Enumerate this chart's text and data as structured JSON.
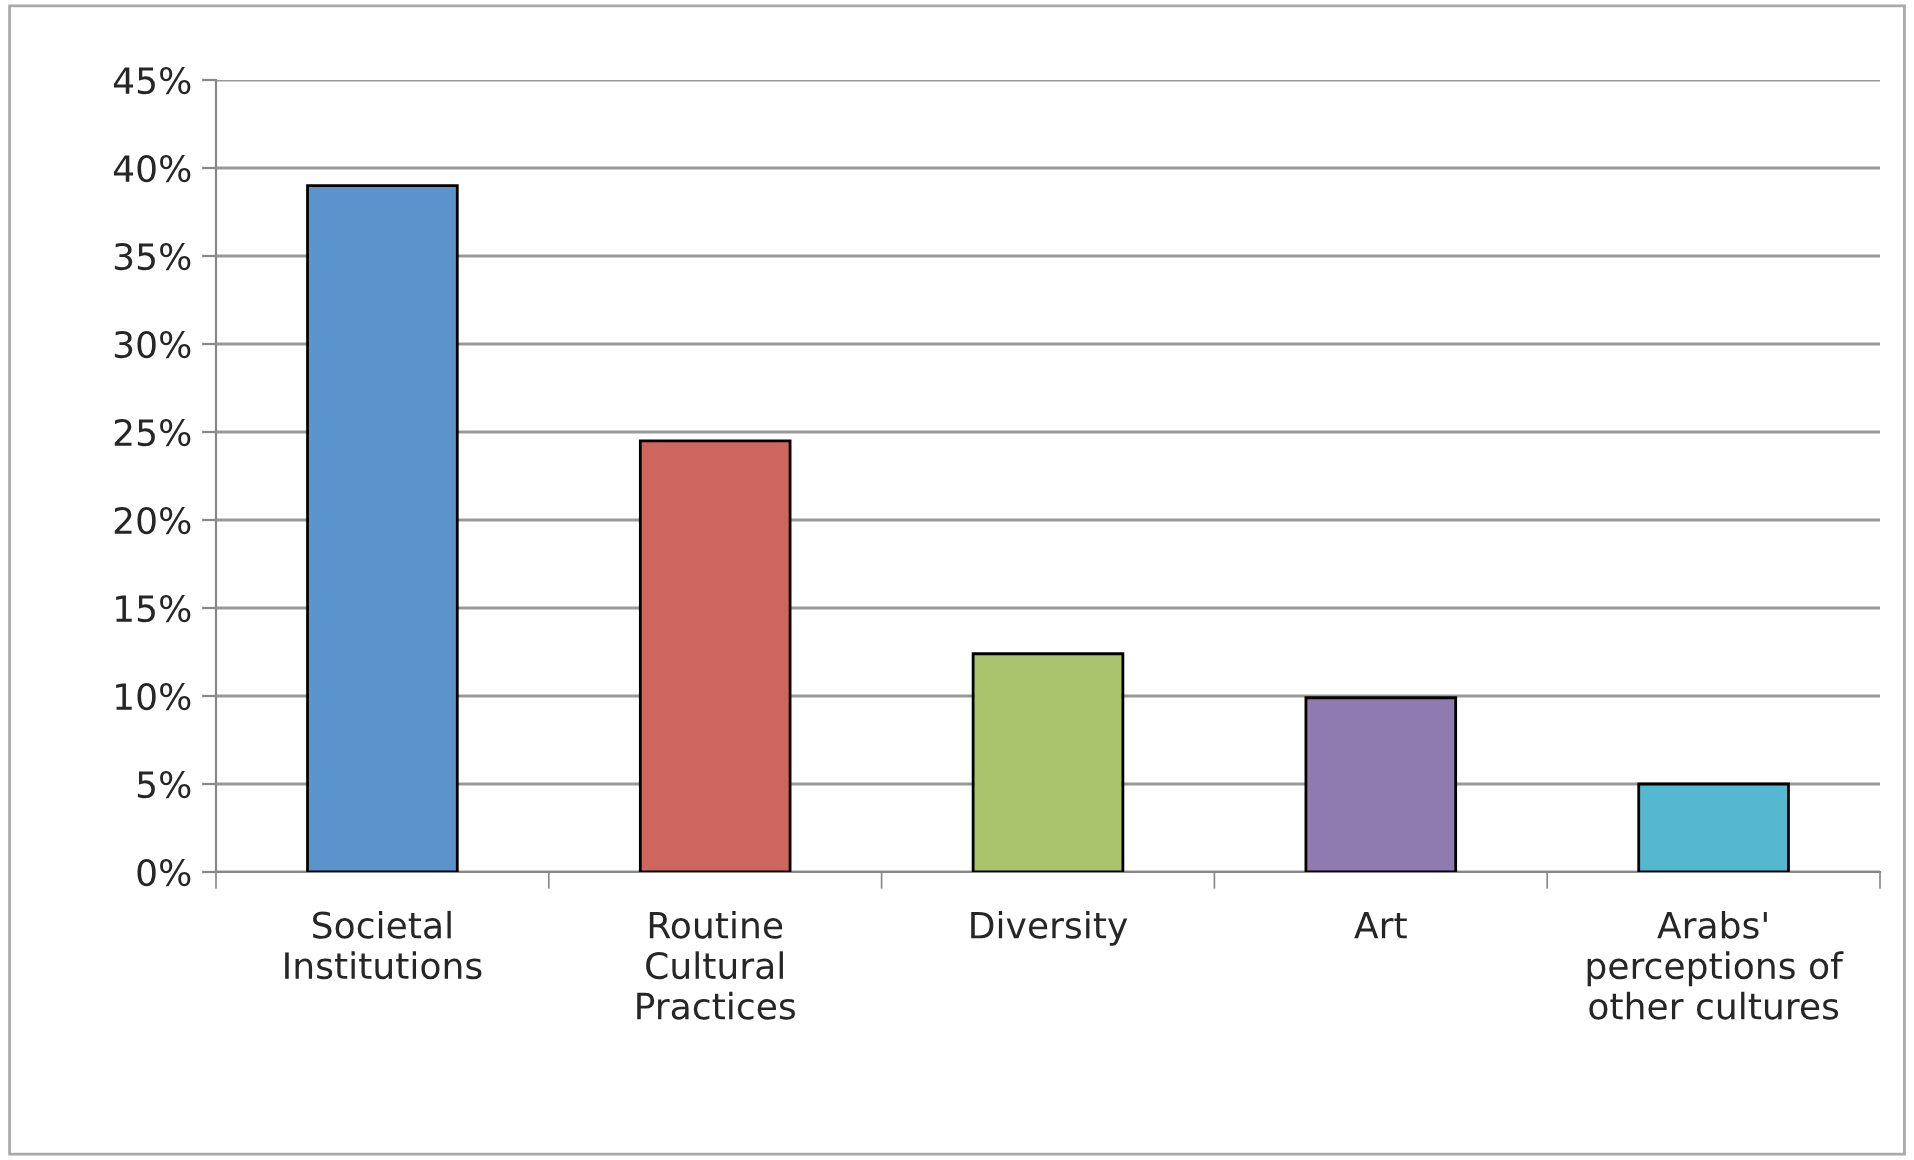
{
  "chart_data": {
    "type": "bar",
    "categories": [
      "Societal\nInstitutions",
      "Routine\nCultural\nPractices",
      "Diversity",
      "Art",
      "Arabs'\nperceptions of\nother cultures"
    ],
    "values": [
      39,
      24.5,
      12.4,
      9.9,
      5.0
    ],
    "colors": [
      "#5b93cc",
      "#cd665e",
      "#a9c46c",
      "#8f7bb0",
      "#55b7d0"
    ],
    "ylim": [
      0,
      45
    ],
    "yticks": [
      {
        "value": 0,
        "label": "0%"
      },
      {
        "value": 5,
        "label": "5%"
      },
      {
        "value": 10,
        "label": "10%"
      },
      {
        "value": 15,
        "label": "15%"
      },
      {
        "value": 20,
        "label": "20%"
      },
      {
        "value": 25,
        "label": "25%"
      },
      {
        "value": 30,
        "label": "30%"
      },
      {
        "value": 35,
        "label": "35%"
      },
      {
        "value": 40,
        "label": "40%"
      },
      {
        "value": 45,
        "label": "45%"
      }
    ],
    "grid": "y",
    "legend": false
  }
}
